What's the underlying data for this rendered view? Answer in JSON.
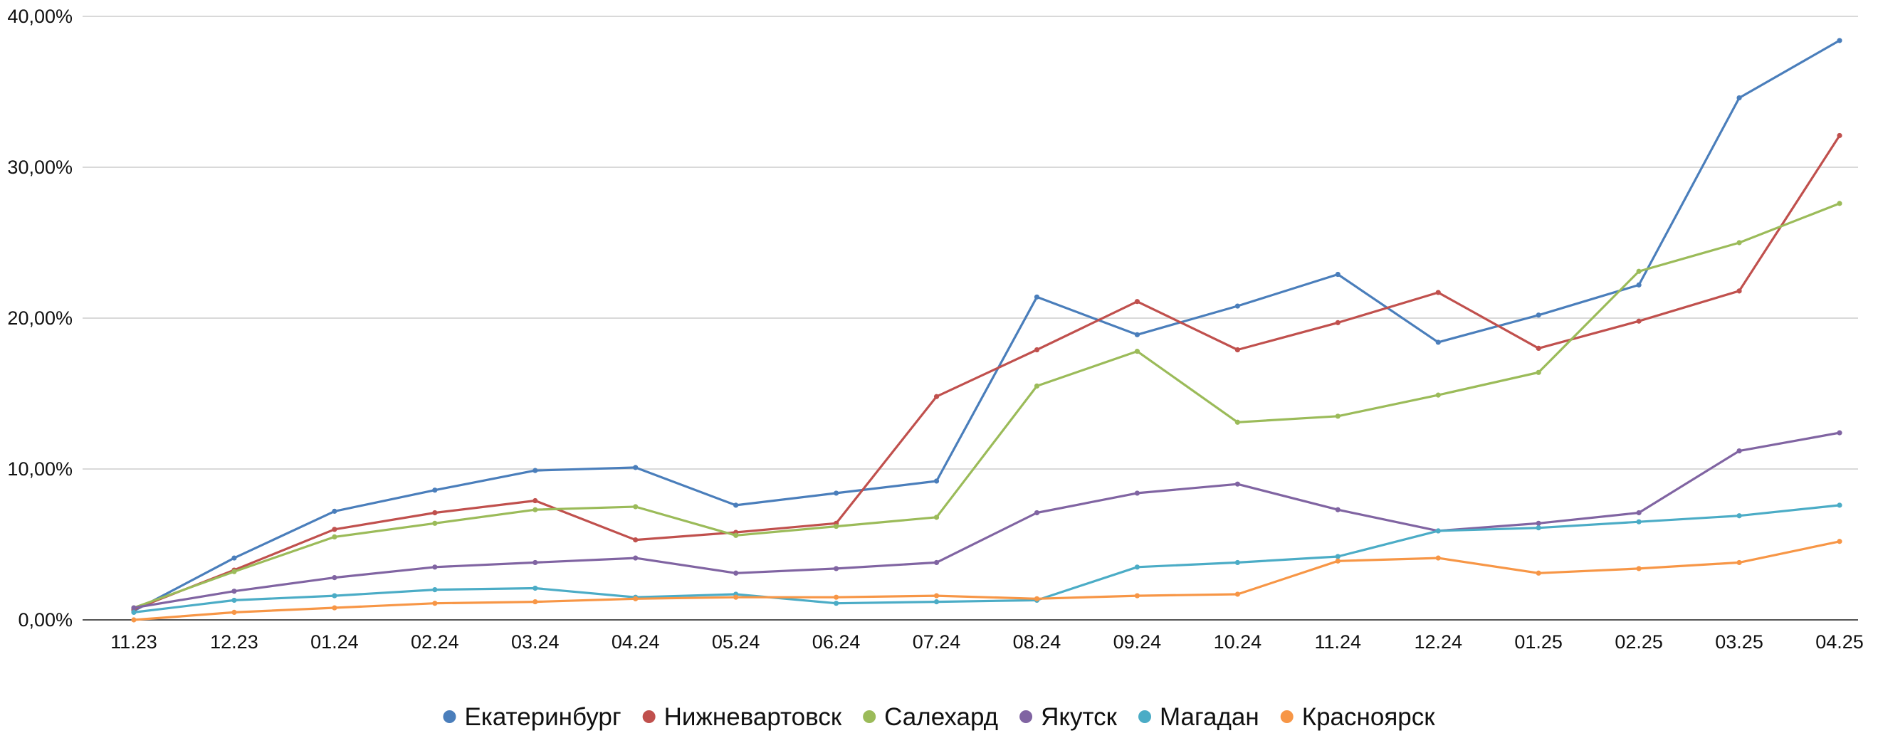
{
  "chart_data": {
    "type": "line",
    "title": "",
    "xlabel": "",
    "ylabel": "",
    "grid": true,
    "legend_position": "bottom",
    "ylim": [
      0,
      40
    ],
    "y_ticks": [
      {
        "value": 0,
        "label": "0,00%"
      },
      {
        "value": 10,
        "label": "10,00%"
      },
      {
        "value": 20,
        "label": "20,00%"
      },
      {
        "value": 30,
        "label": "30,00%"
      },
      {
        "value": 40,
        "label": "40,00%"
      }
    ],
    "categories": [
      "11.23",
      "12.23",
      "01.24",
      "02.24",
      "03.24",
      "04.24",
      "05.24",
      "06.24",
      "07.24",
      "08.24",
      "09.24",
      "10.24",
      "11.24",
      "12.24",
      "01.25",
      "02.25",
      "03.25",
      "04.25"
    ],
    "series": [
      {
        "name": "Екатеринбург",
        "color": "#4A7EBB",
        "values": [
          0.6,
          4.1,
          7.2,
          8.6,
          9.9,
          10.1,
          7.6,
          8.4,
          9.2,
          21.4,
          18.9,
          20.8,
          22.9,
          18.4,
          20.2,
          22.2,
          34.6,
          38.4
        ]
      },
      {
        "name": "Нижневартовск",
        "color": "#C0504D",
        "values": [
          0.7,
          3.3,
          6.0,
          7.1,
          7.9,
          5.3,
          5.8,
          6.4,
          14.8,
          17.9,
          21.1,
          17.9,
          19.7,
          21.7,
          18.0,
          19.8,
          21.8,
          32.1
        ]
      },
      {
        "name": "Салехард",
        "color": "#9BBB59",
        "values": [
          0.8,
          3.2,
          5.5,
          6.4,
          7.3,
          7.5,
          5.6,
          6.2,
          6.8,
          15.5,
          17.8,
          13.1,
          13.5,
          14.9,
          16.4,
          23.1,
          25.0,
          27.6
        ]
      },
      {
        "name": "Якутск",
        "color": "#8064A2",
        "values": [
          0.8,
          1.9,
          2.8,
          3.5,
          3.8,
          4.1,
          3.1,
          3.4,
          3.8,
          7.1,
          8.4,
          9.0,
          7.3,
          5.9,
          6.4,
          7.1,
          11.2,
          12.4
        ]
      },
      {
        "name": "Магадан",
        "color": "#4BACC6",
        "values": [
          0.5,
          1.3,
          1.6,
          2.0,
          2.1,
          1.5,
          1.7,
          1.1,
          1.2,
          1.3,
          3.5,
          3.8,
          4.2,
          5.9,
          6.1,
          6.5,
          6.9,
          7.6
        ]
      },
      {
        "name": "Красноярск",
        "color": "#F79646",
        "values": [
          0.0,
          0.5,
          0.8,
          1.1,
          1.2,
          1.4,
          1.5,
          1.5,
          1.6,
          1.4,
          1.6,
          1.7,
          3.9,
          4.1,
          3.1,
          3.4,
          3.8,
          5.2
        ]
      }
    ]
  }
}
